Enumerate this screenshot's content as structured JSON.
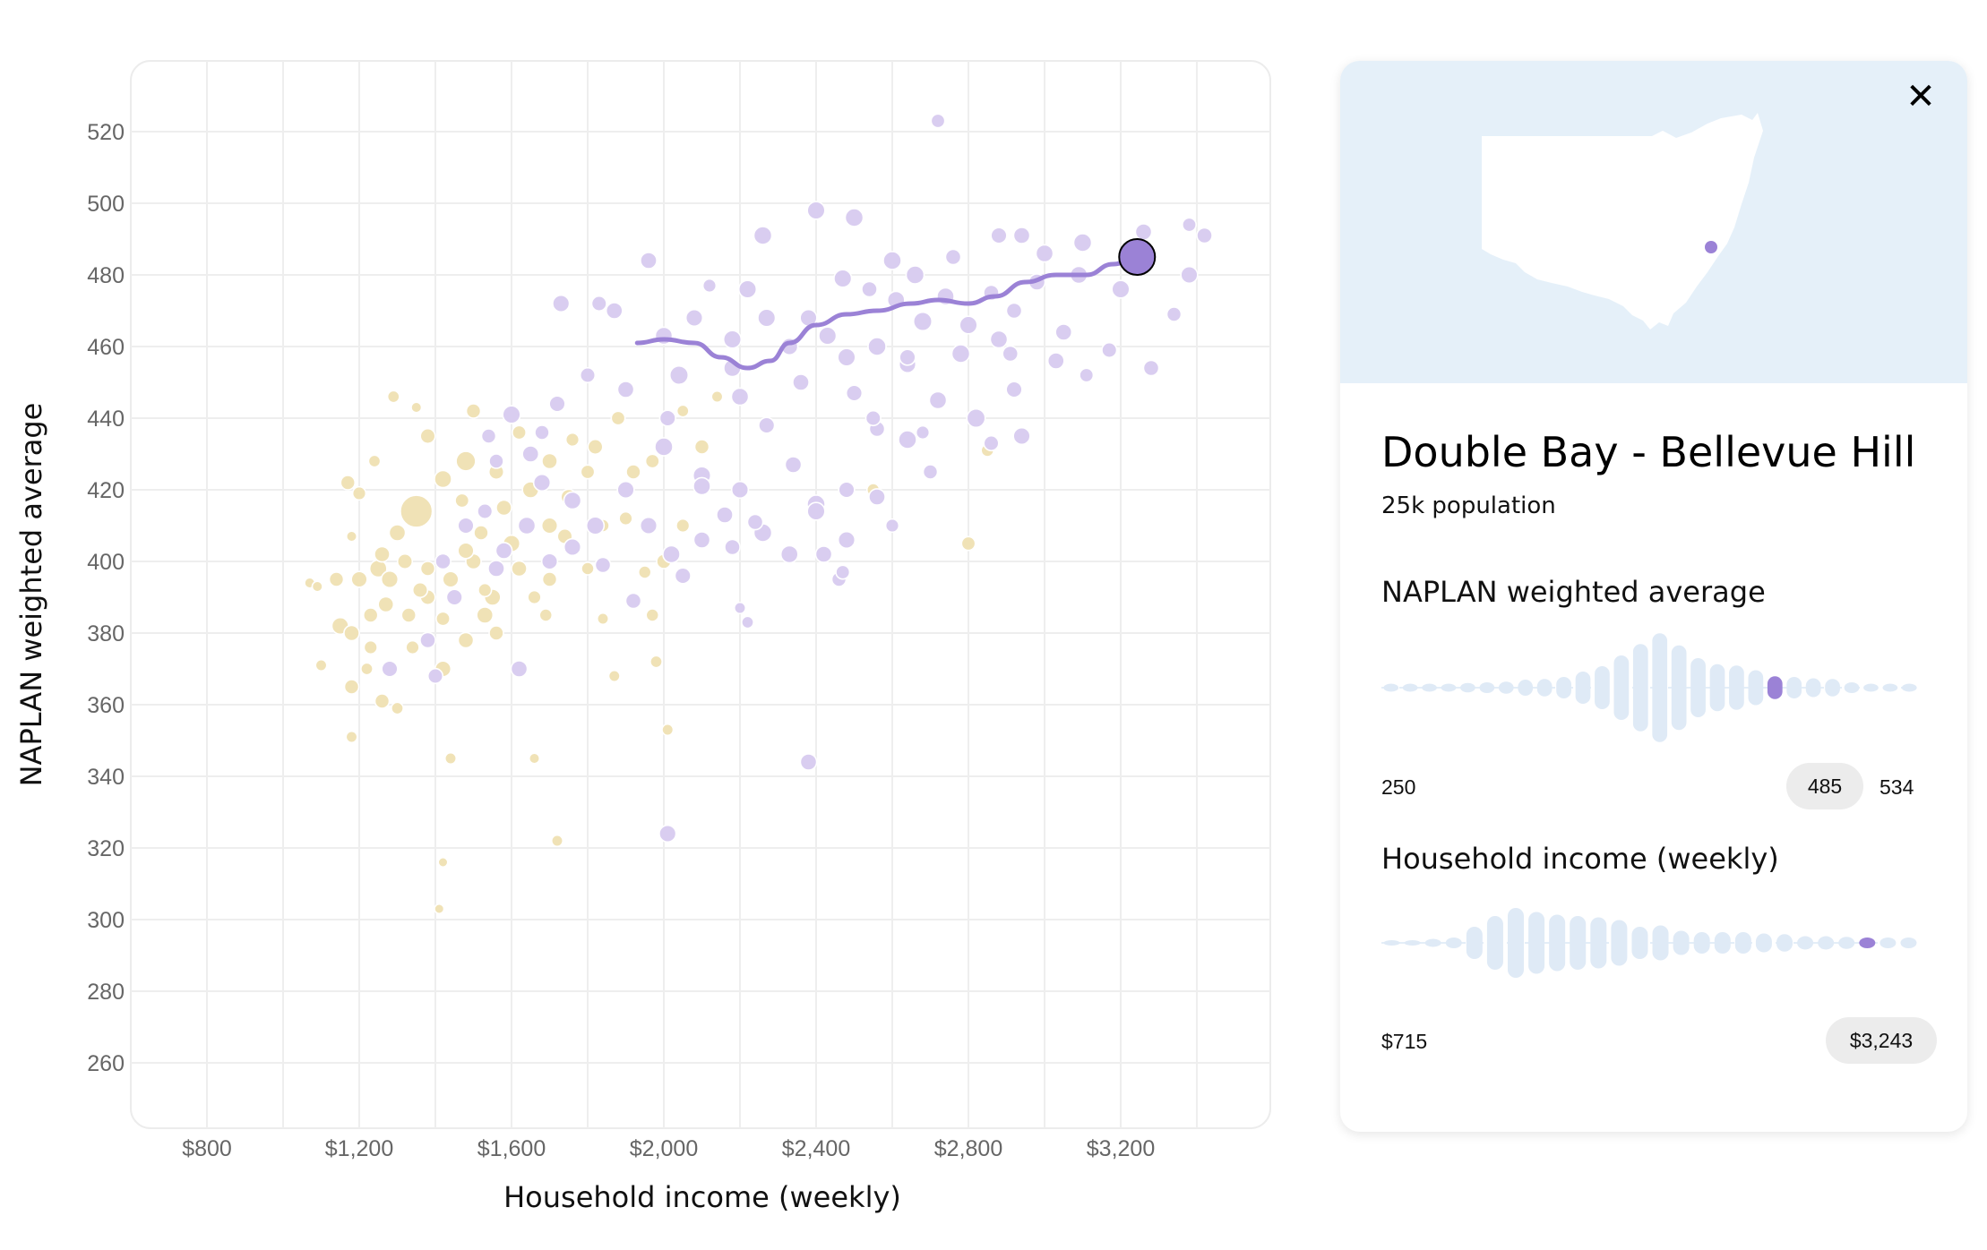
{
  "chart_data": {
    "type": "scatter",
    "xlabel": "Household income (weekly)",
    "ylabel": "NAPLAN weighted average",
    "x_ticks": [
      "$800",
      "$1,200",
      "$1,600",
      "$2,000",
      "$2,400",
      "$2,800",
      "$3,200"
    ],
    "x_tick_values": [
      800,
      1200,
      1600,
      2000,
      2400,
      2800,
      3200
    ],
    "y_ticks": [
      520,
      500,
      480,
      460,
      440,
      420,
      400,
      380,
      360,
      340,
      320,
      300,
      280,
      260
    ],
    "xlim": [
      600,
      3600
    ],
    "ylim": [
      240,
      540
    ],
    "grid": true,
    "bubble_size": "population",
    "colors": {
      "lower_group": "#f0e2b6",
      "higher_group": "#d9cdf0",
      "trend": "#9b82d6",
      "highlight": "#9b82d6"
    },
    "series": [
      {
        "group": "lower",
        "points": [
          [
            1350,
            414,
            7.0
          ],
          [
            1480,
            428,
            2.2
          ],
          [
            1420,
            423,
            1.6
          ],
          [
            1250,
            398,
            1.6
          ],
          [
            1280,
            395,
            1.5
          ],
          [
            1300,
            408,
            1.4
          ],
          [
            1200,
            395,
            1.3
          ],
          [
            1150,
            382,
            1.5
          ],
          [
            1180,
            380,
            1.2
          ],
          [
            1230,
            385,
            1.0
          ],
          [
            1260,
            402,
            1.2
          ],
          [
            1320,
            400,
            1.1
          ],
          [
            1380,
            398,
            1.0
          ],
          [
            1440,
            395,
            1.3
          ],
          [
            1500,
            400,
            1.2
          ],
          [
            1550,
            390,
            1.4
          ],
          [
            1600,
            405,
            1.5
          ],
          [
            1620,
            398,
            1.2
          ],
          [
            1700,
            410,
            1.3
          ],
          [
            1750,
            418,
            1.2
          ],
          [
            1650,
            420,
            1.4
          ],
          [
            1580,
            415,
            1.2
          ],
          [
            1520,
            408,
            1.0
          ],
          [
            1560,
            425,
            1.1
          ],
          [
            1420,
            370,
            1.3
          ],
          [
            1530,
            385,
            1.4
          ],
          [
            1480,
            378,
            1.2
          ],
          [
            1380,
            390,
            1.1
          ],
          [
            1330,
            385,
            1.0
          ],
          [
            1270,
            388,
            1.2
          ],
          [
            1220,
            370,
            0.6
          ],
          [
            1180,
            351,
            0.5
          ],
          [
            1300,
            359,
            0.6
          ],
          [
            1100,
            371,
            0.5
          ],
          [
            1070,
            394,
            0.4
          ],
          [
            1090,
            393,
            0.4
          ],
          [
            1180,
            407,
            0.4
          ],
          [
            1290,
            446,
            0.6
          ],
          [
            1350,
            443,
            0.4
          ],
          [
            1170,
            422,
            1.0
          ],
          [
            1200,
            419,
            0.8
          ],
          [
            1240,
            428,
            0.6
          ],
          [
            1180,
            365,
            1.0
          ],
          [
            1340,
            376,
            0.8
          ],
          [
            1440,
            345,
            0.5
          ],
          [
            1420,
            316,
            0.3
          ],
          [
            1410,
            303,
            0.3
          ],
          [
            1660,
            345,
            0.4
          ],
          [
            1720,
            322,
            0.5
          ],
          [
            1870,
            368,
            0.5
          ],
          [
            2010,
            353,
            0.5
          ],
          [
            1980,
            372,
            0.6
          ],
          [
            1970,
            385,
            0.7
          ],
          [
            1950,
            397,
            0.7
          ],
          [
            1840,
            384,
            0.5
          ],
          [
            1800,
            398,
            0.7
          ],
          [
            1840,
            410,
            0.7
          ],
          [
            1900,
            412,
            0.8
          ],
          [
            1920,
            425,
            1.0
          ],
          [
            1970,
            428,
            0.9
          ],
          [
            2050,
            442,
            0.6
          ],
          [
            2100,
            432,
            1.0
          ],
          [
            2140,
            446,
            0.5
          ],
          [
            2050,
            410,
            0.8
          ],
          [
            2000,
            400,
            1.0
          ],
          [
            2550,
            420,
            0.7
          ],
          [
            2800,
            405,
            0.9
          ],
          [
            2850,
            431,
            0.7
          ],
          [
            1620,
            436,
            0.9
          ],
          [
            1700,
            428,
            1.2
          ],
          [
            1760,
            434,
            0.8
          ],
          [
            1800,
            425,
            0.9
          ],
          [
            1480,
            403,
            1.3
          ],
          [
            1560,
            380,
            1.0
          ],
          [
            1420,
            384,
            0.9
          ],
          [
            1360,
            392,
            1.1
          ],
          [
            1230,
            376,
            0.8
          ],
          [
            1260,
            361,
            1.0
          ],
          [
            1140,
            395,
            1.0
          ],
          [
            1660,
            390,
            0.8
          ],
          [
            1700,
            395,
            1.0
          ],
          [
            1820,
            432,
            1.1
          ],
          [
            1880,
            440,
            0.9
          ],
          [
            1740,
            407,
            1.1
          ],
          [
            1690,
            385,
            0.7
          ],
          [
            1530,
            392,
            0.8
          ],
          [
            1470,
            417,
            0.9
          ],
          [
            1500,
            442,
            1.0
          ],
          [
            1380,
            435,
            1.1
          ]
        ]
      },
      {
        "group": "higher",
        "points": [
          [
            2720,
            523,
            0.9
          ],
          [
            2400,
            498,
            1.7
          ],
          [
            2500,
            496,
            1.8
          ],
          [
            2260,
            491,
            1.8
          ],
          [
            2880,
            491,
            1.3
          ],
          [
            2940,
            491,
            1.4
          ],
          [
            3000,
            486,
            1.6
          ],
          [
            3100,
            489,
            1.8
          ],
          [
            3260,
            492,
            1.4
          ],
          [
            3380,
            494,
            0.9
          ],
          [
            3420,
            491,
            1.2
          ],
          [
            3380,
            480,
            1.5
          ],
          [
            3200,
            476,
            1.7
          ],
          [
            1960,
            484,
            1.4
          ],
          [
            2120,
            477,
            0.8
          ],
          [
            2220,
            476,
            1.7
          ],
          [
            2470,
            479,
            1.7
          ],
          [
            2600,
            484,
            1.8
          ],
          [
            2760,
            485,
            1.2
          ],
          [
            2920,
            470,
            1.2
          ],
          [
            3050,
            464,
            1.4
          ],
          [
            3280,
            454,
            1.2
          ],
          [
            3340,
            469,
            1.0
          ],
          [
            1730,
            472,
            1.5
          ],
          [
            1870,
            470,
            1.4
          ],
          [
            2000,
            463,
            1.6
          ],
          [
            2080,
            468,
            1.5
          ],
          [
            2180,
            462,
            1.7
          ],
          [
            2330,
            460,
            1.5
          ],
          [
            2430,
            463,
            1.7
          ],
          [
            2560,
            460,
            1.8
          ],
          [
            2680,
            467,
            1.9
          ],
          [
            2800,
            466,
            1.7
          ],
          [
            2910,
            458,
            1.2
          ],
          [
            3030,
            456,
            1.4
          ],
          [
            3110,
            452,
            0.9
          ],
          [
            3170,
            459,
            1.1
          ],
          [
            2560,
            437,
            1.2
          ],
          [
            2640,
            434,
            1.8
          ],
          [
            2720,
            445,
            1.6
          ],
          [
            2820,
            440,
            1.9
          ],
          [
            2920,
            448,
            1.3
          ],
          [
            2700,
            425,
            1.0
          ],
          [
            2860,
            433,
            1.1
          ],
          [
            2940,
            435,
            1.5
          ],
          [
            2500,
            447,
            1.3
          ],
          [
            2360,
            450,
            1.4
          ],
          [
            2200,
            446,
            1.6
          ],
          [
            2040,
            452,
            1.9
          ],
          [
            1900,
            448,
            1.4
          ],
          [
            1800,
            452,
            1.1
          ],
          [
            1720,
            444,
            1.3
          ],
          [
            1600,
            441,
            1.7
          ],
          [
            1650,
            430,
            1.4
          ],
          [
            1560,
            428,
            1.0
          ],
          [
            1680,
            422,
            1.5
          ],
          [
            1760,
            417,
            1.6
          ],
          [
            1900,
            420,
            1.5
          ],
          [
            2000,
            432,
            1.8
          ],
          [
            2100,
            424,
            1.7
          ],
          [
            2200,
            420,
            1.5
          ],
          [
            2270,
            438,
            1.3
          ],
          [
            2340,
            427,
            1.4
          ],
          [
            2400,
            416,
            1.8
          ],
          [
            2480,
            420,
            1.3
          ],
          [
            2560,
            418,
            1.4
          ],
          [
            2020,
            402,
            1.6
          ],
          [
            2100,
            406,
            1.4
          ],
          [
            2180,
            404,
            1.2
          ],
          [
            2260,
            408,
            1.8
          ],
          [
            2330,
            402,
            1.6
          ],
          [
            2420,
            402,
            1.4
          ],
          [
            2400,
            414,
            1.7
          ],
          [
            1920,
            389,
            1.2
          ],
          [
            1620,
            370,
            1.4
          ],
          [
            1280,
            370,
            1.3
          ],
          [
            1400,
            368,
            1.1
          ],
          [
            2380,
            344,
            1.4
          ],
          [
            2010,
            324,
            1.5
          ],
          [
            2220,
            383,
            0.6
          ],
          [
            2200,
            387,
            0.5
          ],
          [
            2460,
            395,
            1.0
          ],
          [
            2480,
            406,
            1.5
          ],
          [
            2100,
            421,
            1.6
          ],
          [
            1820,
            410,
            1.7
          ],
          [
            1760,
            404,
            1.5
          ],
          [
            1640,
            410,
            1.6
          ],
          [
            1580,
            403,
            1.4
          ],
          [
            1480,
            410,
            1.3
          ],
          [
            1420,
            400,
            1.2
          ],
          [
            1380,
            378,
            1.2
          ],
          [
            1450,
            390,
            1.3
          ],
          [
            1560,
            398,
            1.4
          ],
          [
            1530,
            414,
            1.1
          ],
          [
            1700,
            400,
            1.3
          ],
          [
            1840,
            399,
            1.2
          ],
          [
            1960,
            410,
            1.5
          ],
          [
            2050,
            396,
            1.3
          ],
          [
            2160,
            413,
            1.4
          ],
          [
            2240,
            411,
            1.2
          ],
          [
            2010,
            440,
            1.3
          ],
          [
            2180,
            454,
            1.6
          ],
          [
            2270,
            468,
            1.7
          ],
          [
            2380,
            468,
            1.5
          ],
          [
            2610,
            473,
            1.6
          ],
          [
            2740,
            474,
            1.6
          ],
          [
            2860,
            475,
            1.2
          ],
          [
            2980,
            478,
            1.4
          ],
          [
            3090,
            480,
            1.6
          ],
          [
            2660,
            480,
            1.8
          ],
          [
            2540,
            476,
            1.2
          ],
          [
            2640,
            455,
            1.5
          ],
          [
            2780,
            458,
            1.8
          ],
          [
            2880,
            462,
            1.6
          ],
          [
            2480,
            457,
            1.7
          ],
          [
            1830,
            472,
            1.1
          ],
          [
            1680,
            436,
            1.0
          ],
          [
            1540,
            435,
            1.0
          ],
          [
            2550,
            440,
            1.1
          ],
          [
            2640,
            457,
            1.3
          ],
          [
            2680,
            436,
            0.8
          ],
          [
            2600,
            410,
            0.8
          ],
          [
            2470,
            397,
            0.9
          ]
        ]
      }
    ],
    "trend_line": [
      [
        1930,
        461
      ],
      [
        2000,
        462
      ],
      [
        2080,
        461
      ],
      [
        2150,
        457
      ],
      [
        2220,
        454
      ],
      [
        2280,
        456
      ],
      [
        2330,
        461
      ],
      [
        2400,
        466
      ],
      [
        2480,
        469
      ],
      [
        2560,
        470
      ],
      [
        2650,
        472
      ],
      [
        2720,
        473
      ],
      [
        2800,
        472
      ],
      [
        2870,
        474
      ],
      [
        2950,
        478
      ],
      [
        3030,
        480
      ],
      [
        3110,
        480
      ],
      [
        3180,
        483
      ],
      [
        3243,
        485
      ]
    ],
    "highlight_point": {
      "x": 3243,
      "y": 485
    }
  },
  "panel": {
    "close_symbol": "✕",
    "region_name": "Double Bay - Bellevue Hill",
    "population": "25k population",
    "naplan": {
      "title": "NAPLAN weighted average",
      "min_label": "250",
      "value_label": "485",
      "max_label": "534",
      "histogram": [
        0.6,
        0.6,
        0.6,
        0.6,
        0.7,
        0.8,
        0.9,
        1.2,
        1.3,
        1.6,
        2.4,
        3.2,
        4.8,
        6.5,
        8.1,
        6.3,
        4.4,
        3.5,
        3.3,
        2.6,
        1.7,
        1.6,
        1.4,
        1.3,
        0.8,
        0.6,
        0.6,
        0.6
      ],
      "highlight_index": 20,
      "highlight_value": 485,
      "domain": [
        250,
        534
      ]
    },
    "income": {
      "title": "Household income (weekly)",
      "min_label": "$715",
      "value_label": "$3,243",
      "histogram": [
        0.4,
        0.4,
        0.6,
        0.8,
        2.4,
        4.0,
        5.2,
        4.6,
        4.2,
        4.0,
        3.8,
        3.4,
        2.4,
        2.6,
        1.8,
        1.6,
        1.6,
        1.6,
        1.4,
        1.3,
        1.0,
        1.0,
        0.9,
        0.8,
        0.8,
        0.8
      ],
      "highlight_index": 23,
      "highlight_value": 3243
    },
    "map_colors": {
      "background": "#e5f0f9",
      "land": "#ffffff",
      "marker": "#9b82d6"
    }
  }
}
